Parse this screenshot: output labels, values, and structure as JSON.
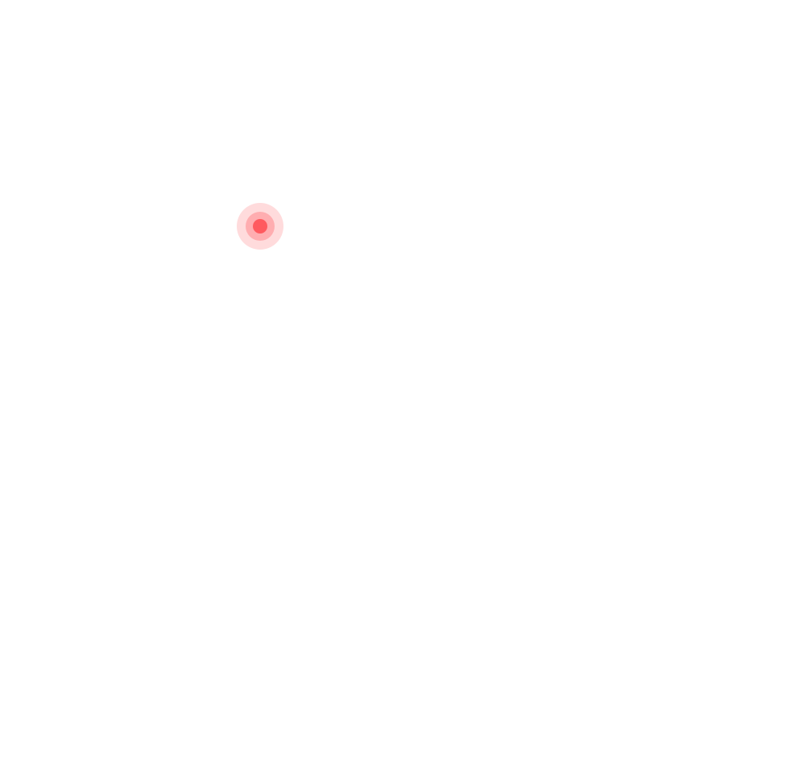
{
  "marker": {
    "icon": "pulsing-dot-icon",
    "color": "#ff5a5f",
    "ring_outer_color": "#ff5a5f",
    "ring_inner_color": "#ff5a5f"
  }
}
